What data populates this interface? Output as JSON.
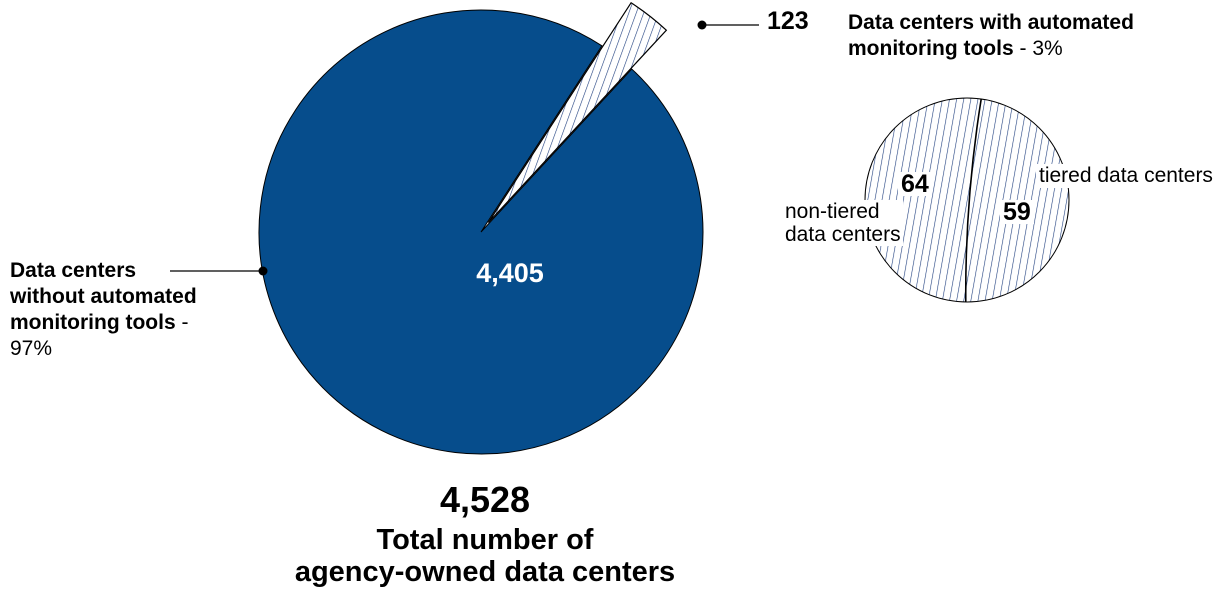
{
  "chart_data": [
    {
      "type": "pie",
      "slices": [
        {
          "label": "Data centers without automated monitoring tools",
          "value": 4405,
          "percent": "97%"
        },
        {
          "label": "Data centers with automated monitoring tools",
          "value": 123,
          "percent": "3%"
        }
      ],
      "value_labels": {
        "main": "4,405",
        "exploded": "123"
      },
      "slice_labels": {
        "main_lines": [
          "Data centers",
          "without automated",
          "monitoring tools"
        ],
        "main_suffix": "-",
        "main_percent": "97%",
        "exploded_lines": [
          "Data centers with automated",
          "monitoring tools"
        ],
        "exploded_suffix": "- 3%"
      },
      "total": {
        "value": "4,528",
        "label": "Total number of",
        "label2": "agency-owned data centers"
      },
      "colors": {
        "main": "#064d8c",
        "hatch": "#1f3f7f",
        "outline": "#000000"
      }
    },
    {
      "type": "pie",
      "slices": [
        {
          "label": "non-tiered data centers",
          "value": 64
        },
        {
          "label": "tiered data centers",
          "value": 59
        }
      ],
      "labels": {
        "nontiered_lines": [
          "non-tiered",
          "data centers"
        ],
        "tiered": "tiered data centers",
        "value_nontiered": "64",
        "value_tiered": "59"
      }
    }
  ]
}
